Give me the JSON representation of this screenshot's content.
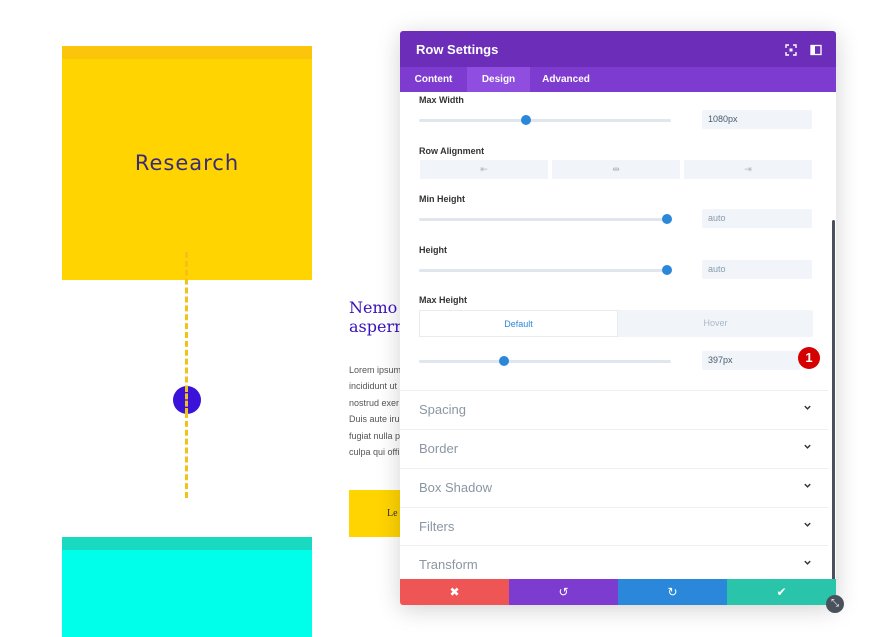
{
  "background": {
    "card_top_title": "Research",
    "heading_lines": [
      "Nemo",
      "asperr"
    ],
    "paragraph_lines": [
      "Lorem ipsum",
      "incididunt ut",
      "nostrud exer",
      "Duis aute irur",
      "fugiat nulla p",
      "culpa qui offi"
    ],
    "button_label": "Le"
  },
  "modal": {
    "title": "Row Settings",
    "header_icons": [
      "expand-icon",
      "sidebar-toggle-icon"
    ],
    "tabs": [
      "Content",
      "Design",
      "Advanced"
    ],
    "active_tab": "Design",
    "fields": {
      "max_width": {
        "label": "Max Width",
        "value": "1080px",
        "slider_fraction": 0.42
      },
      "row_alignment": {
        "label": "Row Alignment",
        "options": [
          "left-align-icon",
          "center-align-icon",
          "right-align-icon"
        ]
      },
      "min_height": {
        "label": "Min Height",
        "value": "auto",
        "slider_fraction": 0.98
      },
      "height": {
        "label": "Height",
        "value": "auto",
        "slider_fraction": 0.98
      },
      "max_height": {
        "label": "Max Height",
        "toggle": [
          "Default",
          "Hover"
        ],
        "active_toggle": "Default",
        "value": "397px",
        "slider_fraction": 0.33
      }
    },
    "badge_number": "1",
    "sections": [
      "Spacing",
      "Border",
      "Box Shadow",
      "Filters",
      "Transform"
    ],
    "footer": {
      "buttons": [
        {
          "name": "discard",
          "glyph": "✖",
          "color": "#ef5555"
        },
        {
          "name": "undo",
          "glyph": "↺",
          "color": "#7e3bd0"
        },
        {
          "name": "redo",
          "glyph": "↻",
          "color": "#2b87da"
        },
        {
          "name": "save",
          "glyph": "✔",
          "color": "#29c4a9"
        }
      ]
    }
  },
  "colors": {
    "header": "#6c2eb9",
    "tabs": "#7e3bd0",
    "accent": "#2b87da",
    "badge": "#d50000"
  }
}
